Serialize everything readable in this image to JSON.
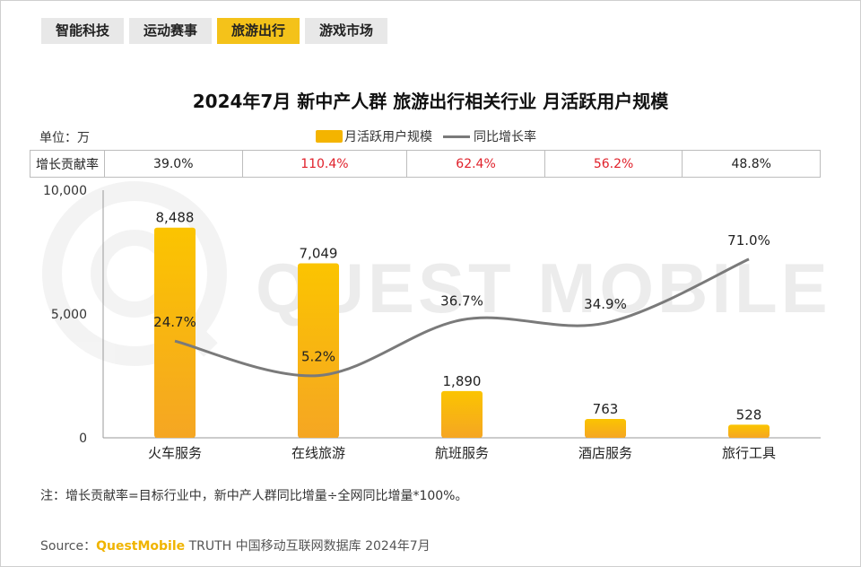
{
  "tabs": [
    {
      "label": "智能科技",
      "active": false
    },
    {
      "label": "运动赛事",
      "active": false
    },
    {
      "label": "旅游出行",
      "active": true
    },
    {
      "label": "游戏市场",
      "active": false
    }
  ],
  "unit_label": "单位：万",
  "legend": {
    "bar": "月活跃用户规模",
    "line": "同比增长率"
  },
  "contrib": {
    "header": "增长贡献率",
    "values": [
      "39.0%",
      "110.4%",
      "62.4%",
      "56.2%",
      "48.8%"
    ],
    "colors": [
      "#222222",
      "#e0202a",
      "#e0202a",
      "#e0202a",
      "#222222"
    ]
  },
  "watermark": "QUEST MOBILE",
  "note": "注：增长贡献率=目标行业中，新中产人群同比增量÷全网同比增量*100%。",
  "source": {
    "prefix": "Source：",
    "brand": "QuestMobile",
    "suffix": " TRUTH 中国移动互联网数据库 2024年7月"
  },
  "colors": {
    "bar": "#f4b400",
    "line": "#7a7a7a",
    "accent": "#f4c21a"
  },
  "chart_data": {
    "type": "bar",
    "title": "2024年7月 新中产人群 旅游出行相关行业 月活跃用户规模",
    "categories": [
      "火车服务",
      "在线旅游",
      "航班服务",
      "酒店服务",
      "旅行工具"
    ],
    "series": [
      {
        "name": "月活跃用户规模",
        "type": "bar",
        "axis": "left",
        "values": [
          8488,
          7049,
          1890,
          763,
          528
        ],
        "labels": [
          "8,488",
          "7,049",
          "1,890",
          "763",
          "528"
        ]
      },
      {
        "name": "同比增长率",
        "type": "line",
        "axis": "right",
        "values": [
          24.7,
          5.2,
          36.7,
          34.9,
          71.0
        ],
        "labels": [
          "24.7%",
          "5.2%",
          "36.7%",
          "34.9%",
          "71.0%"
        ]
      }
    ],
    "yticks": [
      0,
      5000,
      10000
    ],
    "ytick_labels": [
      "0",
      "5,000",
      "10,000"
    ],
    "ylim": [
      0,
      10000
    ],
    "y2lim": [
      -30,
      110
    ],
    "ylabel": "单位：万",
    "xlabel": ""
  }
}
